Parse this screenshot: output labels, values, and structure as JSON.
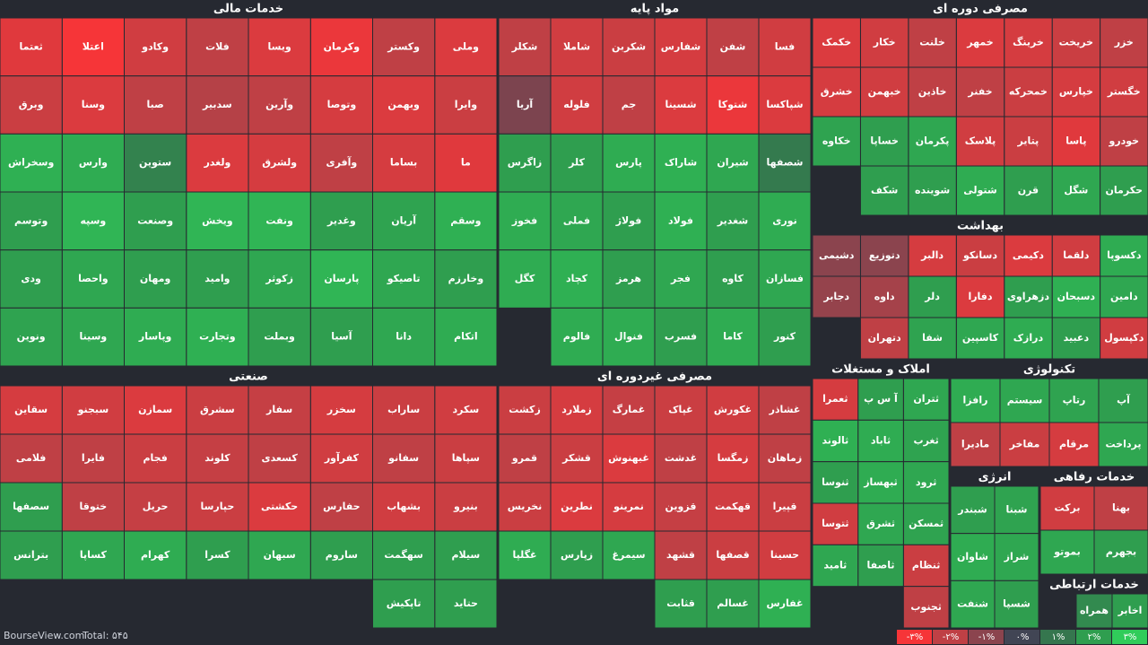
{
  "chart_data": {
    "type": "treemap",
    "footer": {
      "site": "BourseView.com",
      "total": "Total: ۵۴۵"
    },
    "legend": [
      {
        "label": "-۳%",
        "value": -3,
        "color": "#f63538"
      },
      {
        "label": "-۲%",
        "value": -2,
        "color": "#bf4045"
      },
      {
        "label": "-۱%",
        "value": -1,
        "color": "#8b444e"
      },
      {
        "label": "۰%",
        "value": 0,
        "color": "#414554"
      },
      {
        "label": "۱%",
        "value": 1,
        "color": "#35764e"
      },
      {
        "label": "۲%",
        "value": 2,
        "color": "#2f9e4f"
      },
      {
        "label": "۳%",
        "value": 3,
        "color": "#30cc5a"
      }
    ],
    "sectors": [
      {
        "title": "خدمات مالی",
        "tiles": [
          {
            "name": "وملی",
            "change": -2.5
          },
          {
            "name": "وکستر",
            "change": -2
          },
          {
            "name": "وکرمان",
            "change": -2.8
          },
          {
            "name": "ویسا",
            "change": -2.5
          },
          {
            "name": "فلات",
            "change": -2
          },
          {
            "name": "وکادو",
            "change": -2.3
          },
          {
            "name": "اعتلا",
            "change": -3
          },
          {
            "name": "ثعتما",
            "change": -2.6
          },
          {
            "name": "وایرا",
            "change": -2.2
          },
          {
            "name": "وبهمن",
            "change": -2.5
          },
          {
            "name": "وتوصا",
            "change": -2.4
          },
          {
            "name": "وآرین",
            "change": -2
          },
          {
            "name": "سدبیر",
            "change": -1.8
          },
          {
            "name": "صبا",
            "change": -2
          },
          {
            "name": "وسنا",
            "change": -2.5
          },
          {
            "name": "وبرق",
            "change": -2.2
          },
          {
            "name": "ما",
            "change": -2.6
          },
          {
            "name": "بساما",
            "change": -2.4
          },
          {
            "name": "وآفری",
            "change": -2
          },
          {
            "name": "ولشرق",
            "change": -2.4
          },
          {
            "name": "ولغدر",
            "change": -2.5
          },
          {
            "name": "ستوین",
            "change": 1.3
          },
          {
            "name": "وارس",
            "change": 2.3
          },
          {
            "name": "وسخراش",
            "change": 2.4
          },
          {
            "name": "وسقم",
            "change": 2.4
          },
          {
            "name": "آریان",
            "change": 2.1
          },
          {
            "name": "وغدیر",
            "change": 2
          },
          {
            "name": "ونفت",
            "change": 2.5
          },
          {
            "name": "ویخش",
            "change": 2.5
          },
          {
            "name": "وصنعت",
            "change": 2
          },
          {
            "name": "وسپه",
            "change": 2.5
          },
          {
            "name": "وتوسم",
            "change": 2
          },
          {
            "name": "وخارزم",
            "change": 2
          },
          {
            "name": "تاصیکو",
            "change": 2.2
          },
          {
            "name": "پارسان",
            "change": 2.5
          },
          {
            "name": "زکوثر",
            "change": 2.2
          },
          {
            "name": "وامید",
            "change": 2
          },
          {
            "name": "ومهان",
            "change": 2
          },
          {
            "name": "واحصا",
            "change": 2.2
          },
          {
            "name": "ودی",
            "change": 2
          },
          {
            "name": "اتکام",
            "change": 2.3
          },
          {
            "name": "دانا",
            "change": 2.2
          },
          {
            "name": "آسیا",
            "change": 2
          },
          {
            "name": "وبملت",
            "change": 2
          },
          {
            "name": "وتجارت",
            "change": 2.4
          },
          {
            "name": "وپاسار",
            "change": 2.3
          },
          {
            "name": "وسینا",
            "change": 2.2
          },
          {
            "name": "ونوین",
            "change": 2.1
          }
        ]
      },
      {
        "title": "مواد پایه",
        "tiles": [
          {
            "name": "فسا",
            "change": -2.3
          },
          {
            "name": "شفن",
            "change": -2
          },
          {
            "name": "شفارس",
            "change": -2.4
          },
          {
            "name": "شکربن",
            "change": -2.2
          },
          {
            "name": "شاملا",
            "change": -2.3
          },
          {
            "name": "شکلر",
            "change": -2
          },
          {
            "name": "شپاکسا",
            "change": -2.5
          },
          {
            "name": "شتوکا",
            "change": -2.8
          },
          {
            "name": "شسینا",
            "change": -2.5
          },
          {
            "name": "جم",
            "change": -2
          },
          {
            "name": "فلوله",
            "change": -2.3
          },
          {
            "name": "آریا",
            "change": -0.8
          },
          {
            "name": "شصفها",
            "change": 1.1
          },
          {
            "name": "شیران",
            "change": 2.2
          },
          {
            "name": "شاراک",
            "change": 2.4
          },
          {
            "name": "پارس",
            "change": 2.3
          },
          {
            "name": "کلر",
            "change": 2
          },
          {
            "name": "زاگرس",
            "change": 2
          },
          {
            "name": "نوری",
            "change": 2.3
          },
          {
            "name": "شغدیر",
            "change": 2
          },
          {
            "name": "فولاد",
            "change": 2.4
          },
          {
            "name": "فولاژ",
            "change": 2
          },
          {
            "name": "فملی",
            "change": 2.2
          },
          {
            "name": "فخوز",
            "change": 2.3
          },
          {
            "name": "فسازان",
            "change": 2.2
          },
          {
            "name": "کاوه",
            "change": 2
          },
          {
            "name": "فجر",
            "change": 2.2
          },
          {
            "name": "هرمز",
            "change": 2
          },
          {
            "name": "کچاد",
            "change": 2.4
          },
          {
            "name": "کگل",
            "change": 2.3
          },
          {
            "name": "کنور",
            "change": 2
          },
          {
            "name": "کاما",
            "change": 2.3
          },
          {
            "name": "فسرب",
            "change": 2
          },
          {
            "name": "فنوال",
            "change": 2.3
          },
          {
            "name": "فالوم",
            "change": 2.3
          }
        ]
      },
      {
        "title": "مصرفی دوره ای",
        "tiles": [
          {
            "name": "خزر",
            "change": -2
          },
          {
            "name": "خریخت",
            "change": -2.2
          },
          {
            "name": "خرینگ",
            "change": -2.4
          },
          {
            "name": "خمهر",
            "change": -2.5
          },
          {
            "name": "خلنت",
            "change": -2
          },
          {
            "name": "خکار",
            "change": -2.3
          },
          {
            "name": "خکمک",
            "change": -2.5
          },
          {
            "name": "خگستر",
            "change": -2.3
          },
          {
            "name": "خپارس",
            "change": -2.4
          },
          {
            "name": "خمحرکه",
            "change": -2.2
          },
          {
            "name": "خفنر",
            "change": -2
          },
          {
            "name": "خاذین",
            "change": -2
          },
          {
            "name": "خبهمن",
            "change": -2.3
          },
          {
            "name": "خشرق",
            "change": -2.4
          },
          {
            "name": "خودرو",
            "change": -2
          },
          {
            "name": "پاسا",
            "change": -2.6
          },
          {
            "name": "پتایر",
            "change": -2.2
          },
          {
            "name": "پلاسک",
            "change": -2.3
          },
          {
            "name": "پکرمان",
            "change": 2.2
          },
          {
            "name": "خساپا",
            "change": 2
          },
          {
            "name": "خکاوه",
            "change": 2.1
          },
          {
            "name": "حکرمان",
            "change": 2
          },
          {
            "name": "شگل",
            "change": 2.2
          },
          {
            "name": "قرن",
            "change": 2
          },
          {
            "name": "شتولی",
            "change": 2.3
          },
          {
            "name": "شوینده",
            "change": 2
          },
          {
            "name": "شکف",
            "change": 2
          }
        ]
      },
      {
        "title": "بهداشت",
        "tiles": [
          {
            "name": "دکسوپا",
            "change": 2.3
          },
          {
            "name": "دلقما",
            "change": -2.3
          },
          {
            "name": "دکیمی",
            "change": -2.5
          },
          {
            "name": "دسانکو",
            "change": -2.2
          },
          {
            "name": "دالبر",
            "change": -2.4
          },
          {
            "name": "دتوزیع",
            "change": -1
          },
          {
            "name": "دشیمی",
            "change": -1
          },
          {
            "name": "دامین",
            "change": 2.2
          },
          {
            "name": "دسبحان",
            "change": 2.4
          },
          {
            "name": "دزهراوی",
            "change": 2
          },
          {
            "name": "دفارا",
            "change": -2.5
          },
          {
            "name": "دلر",
            "change": 2
          },
          {
            "name": "داوه",
            "change": -1.5
          },
          {
            "name": "دجابر",
            "change": -1.2
          },
          {
            "name": "دکپسول",
            "change": -2.3
          },
          {
            "name": "دعبید",
            "change": 2
          },
          {
            "name": "درازک",
            "change": 2.3
          },
          {
            "name": "کاسپین",
            "change": 2.2
          },
          {
            "name": "شفا",
            "change": 2.1
          },
          {
            "name": "دتهران",
            "change": -2
          }
        ]
      },
      {
        "title": "صنعتی",
        "tiles": [
          {
            "name": "سکرد",
            "change": -2.3
          },
          {
            "name": "ساراب",
            "change": -2.2
          },
          {
            "name": "سخزر",
            "change": -2.4
          },
          {
            "name": "سفار",
            "change": -2.1
          },
          {
            "name": "سشرق",
            "change": -2.2
          },
          {
            "name": "سمازن",
            "change": -2.5
          },
          {
            "name": "سبجنو",
            "change": -2.3
          },
          {
            "name": "سقاین",
            "change": -2.4
          },
          {
            "name": "سپاها",
            "change": -2.2
          },
          {
            "name": "سفانو",
            "change": -2
          },
          {
            "name": "کفرآور",
            "change": -2.3
          },
          {
            "name": "کسعدی",
            "change": -2
          },
          {
            "name": "کلوند",
            "change": -2.1
          },
          {
            "name": "فجام",
            "change": -2.2
          },
          {
            "name": "فایرا",
            "change": -2
          },
          {
            "name": "فلامی",
            "change": -2
          },
          {
            "name": "بنیرو",
            "change": -2.2
          },
          {
            "name": "بشهاب",
            "change": -2.3
          },
          {
            "name": "حفارس",
            "change": -2
          },
          {
            "name": "حکشتی",
            "change": -2.5
          },
          {
            "name": "حپارسا",
            "change": -2.2
          },
          {
            "name": "حریل",
            "change": -2.1
          },
          {
            "name": "ختوقا",
            "change": -2
          },
          {
            "name": "سصفها",
            "change": 2
          },
          {
            "name": "سیلام",
            "change": 2
          },
          {
            "name": "سهگمت",
            "change": 2
          },
          {
            "name": "ساروم",
            "change": 2
          },
          {
            "name": "سبهان",
            "change": 2.2
          },
          {
            "name": "کسرا",
            "change": 2
          },
          {
            "name": "کهرام",
            "change": 2.3
          },
          {
            "name": "کساپا",
            "change": 2.2
          },
          {
            "name": "بترانس",
            "change": 2
          },
          {
            "name": "حتاید",
            "change": 2
          },
          {
            "name": "تاپکیش",
            "change": 2
          }
        ]
      },
      {
        "title": "مصرفی غیردوره ای",
        "tiles": [
          {
            "name": "غشاذر",
            "change": -2
          },
          {
            "name": "غکورش",
            "change": -2.3
          },
          {
            "name": "غپاک",
            "change": -2.2
          },
          {
            "name": "غمارگ",
            "change": -2.1
          },
          {
            "name": "زملارد",
            "change": -2.4
          },
          {
            "name": "زکشت",
            "change": -2.2
          },
          {
            "name": "زماهان",
            "change": -2
          },
          {
            "name": "زمگسا",
            "change": -2.4
          },
          {
            "name": "غدشت",
            "change": -2
          },
          {
            "name": "غبهنوش",
            "change": -2.5
          },
          {
            "name": "قشکر",
            "change": -2.2
          },
          {
            "name": "قمرو",
            "change": -2
          },
          {
            "name": "قپیرا",
            "change": -2.2
          },
          {
            "name": "قهکمت",
            "change": -2.3
          },
          {
            "name": "قزوین",
            "change": -2.1
          },
          {
            "name": "نمرینو",
            "change": -2.4
          },
          {
            "name": "نطرین",
            "change": -2.5
          },
          {
            "name": "نخریس",
            "change": -2.2
          },
          {
            "name": "حسینا",
            "change": -2.3
          },
          {
            "name": "قصفها",
            "change": -2.2
          },
          {
            "name": "قشهد",
            "change": -2
          },
          {
            "name": "سیمرغ",
            "change": 2.2
          },
          {
            "name": "زپارس",
            "change": 2
          },
          {
            "name": "غگلپا",
            "change": 2.3
          },
          {
            "name": "غفارس",
            "change": 2.4
          },
          {
            "name": "غسالم",
            "change": 2
          },
          {
            "name": "قثابت",
            "change": 2
          }
        ]
      },
      {
        "title": "املاک و مستغلات",
        "tiles": [
          {
            "name": "ثتران",
            "change": 2.2
          },
          {
            "name": "آ س پ",
            "change": 2
          },
          {
            "name": "ثعمرا",
            "change": -2.4
          },
          {
            "name": "ثغرب",
            "change": 2.1
          },
          {
            "name": "ثاباد",
            "change": 2.3
          },
          {
            "name": "ثالوند",
            "change": 2.4
          },
          {
            "name": "ثرود",
            "change": 2.2
          },
          {
            "name": "ثبهساز",
            "change": 2.3
          },
          {
            "name": "ثنوسا",
            "change": 2
          },
          {
            "name": "ثمسکن",
            "change": 2.1
          },
          {
            "name": "ثشرق",
            "change": 2.2
          },
          {
            "name": "ثتوسا",
            "change": -2.3
          },
          {
            "name": "ثنظام",
            "change": -2.2
          },
          {
            "name": "ثاصفا",
            "change": 2
          },
          {
            "name": "ثامید",
            "change": 2.2
          },
          {
            "name": "ثجنوب",
            "change": -2
          }
        ]
      },
      {
        "title": "تکنولوژی",
        "tiles": [
          {
            "name": "آپ",
            "change": 2
          },
          {
            "name": "رتاپ",
            "change": 2.1
          },
          {
            "name": "سیستم",
            "change": 2.2
          },
          {
            "name": "رافزا",
            "change": 2.3
          },
          {
            "name": "پرداخت",
            "change": 2.2
          },
          {
            "name": "مرقام",
            "change": -2.4
          },
          {
            "name": "مفاخر",
            "change": -2.2
          },
          {
            "name": "مادیرا",
            "change": -2
          }
        ]
      },
      {
        "title": "انرژی",
        "tiles": [
          {
            "name": "شبنا",
            "change": 2.1
          },
          {
            "name": "شبندر",
            "change": 2
          },
          {
            "name": "شراز",
            "change": 2.2
          },
          {
            "name": "شاوان",
            "change": 2.3
          },
          {
            "name": "شسپا",
            "change": 2
          },
          {
            "name": "شنفت",
            "change": 2.2
          }
        ]
      },
      {
        "title": "خدمات رفاهی",
        "tiles": [
          {
            "name": "بهنا",
            "change": -2
          },
          {
            "name": "برکت",
            "change": -2.3
          },
          {
            "name": "بجهرم",
            "change": 2
          },
          {
            "name": "بموتو",
            "change": 2.2
          }
        ]
      },
      {
        "title": "خدمات ارتباطی",
        "tiles": [
          {
            "name": "اخابر",
            "change": 2
          },
          {
            "name": "همراه",
            "change": 1.5
          }
        ]
      }
    ]
  }
}
